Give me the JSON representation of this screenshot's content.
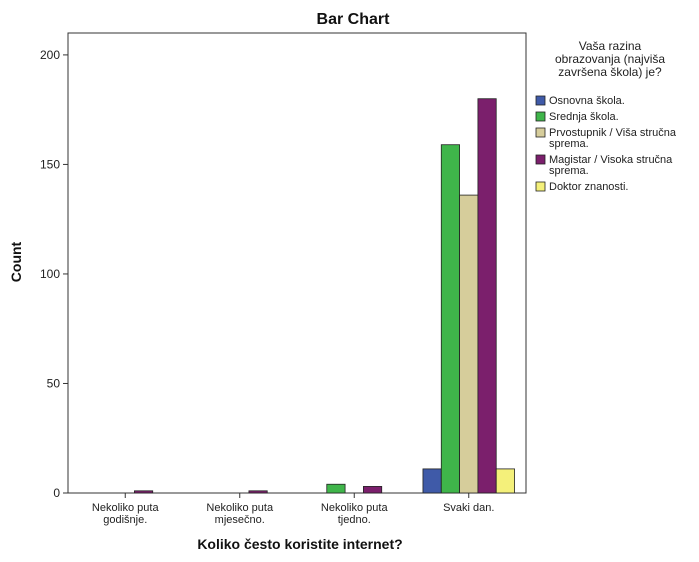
{
  "chart_data": {
    "type": "bar",
    "title": "Bar Chart",
    "xlabel": "Koliko često koristite internet?",
    "ylabel": "Count",
    "ylim": [
      0,
      210
    ],
    "yticks": [
      0,
      50,
      100,
      150,
      200
    ],
    "grid": false,
    "legend_position": "right",
    "legend_title": [
      "Vaša razina",
      "obrazovanja (najviša",
      "završena škola) je?"
    ],
    "categories": [
      [
        "Nekoliko puta",
        "godišnje."
      ],
      [
        "Nekoliko puta",
        "mjesečno."
      ],
      [
        "Nekoliko puta",
        "tjedno."
      ],
      [
        "Svaki dan."
      ]
    ],
    "series": [
      {
        "name": [
          "Osnovna škola."
        ],
        "color": "#3f5aa8",
        "values": [
          0,
          0,
          0,
          11
        ]
      },
      {
        "name": [
          "Srednja škola."
        ],
        "color": "#3fb54a",
        "values": [
          0,
          0,
          4,
          159
        ]
      },
      {
        "name": [
          "Prvostupnik / Viša stručna",
          "sprema."
        ],
        "color": "#d6cd9b",
        "values": [
          0,
          0,
          0,
          136
        ]
      },
      {
        "name": [
          "Magistar / Visoka stručna",
          "sprema."
        ],
        "color": "#7b1f6c",
        "values": [
          1,
          1,
          3,
          180
        ]
      },
      {
        "name": [
          "Doktor znanosti."
        ],
        "color": "#f4f07a",
        "values": [
          0,
          0,
          0,
          11
        ]
      }
    ]
  }
}
